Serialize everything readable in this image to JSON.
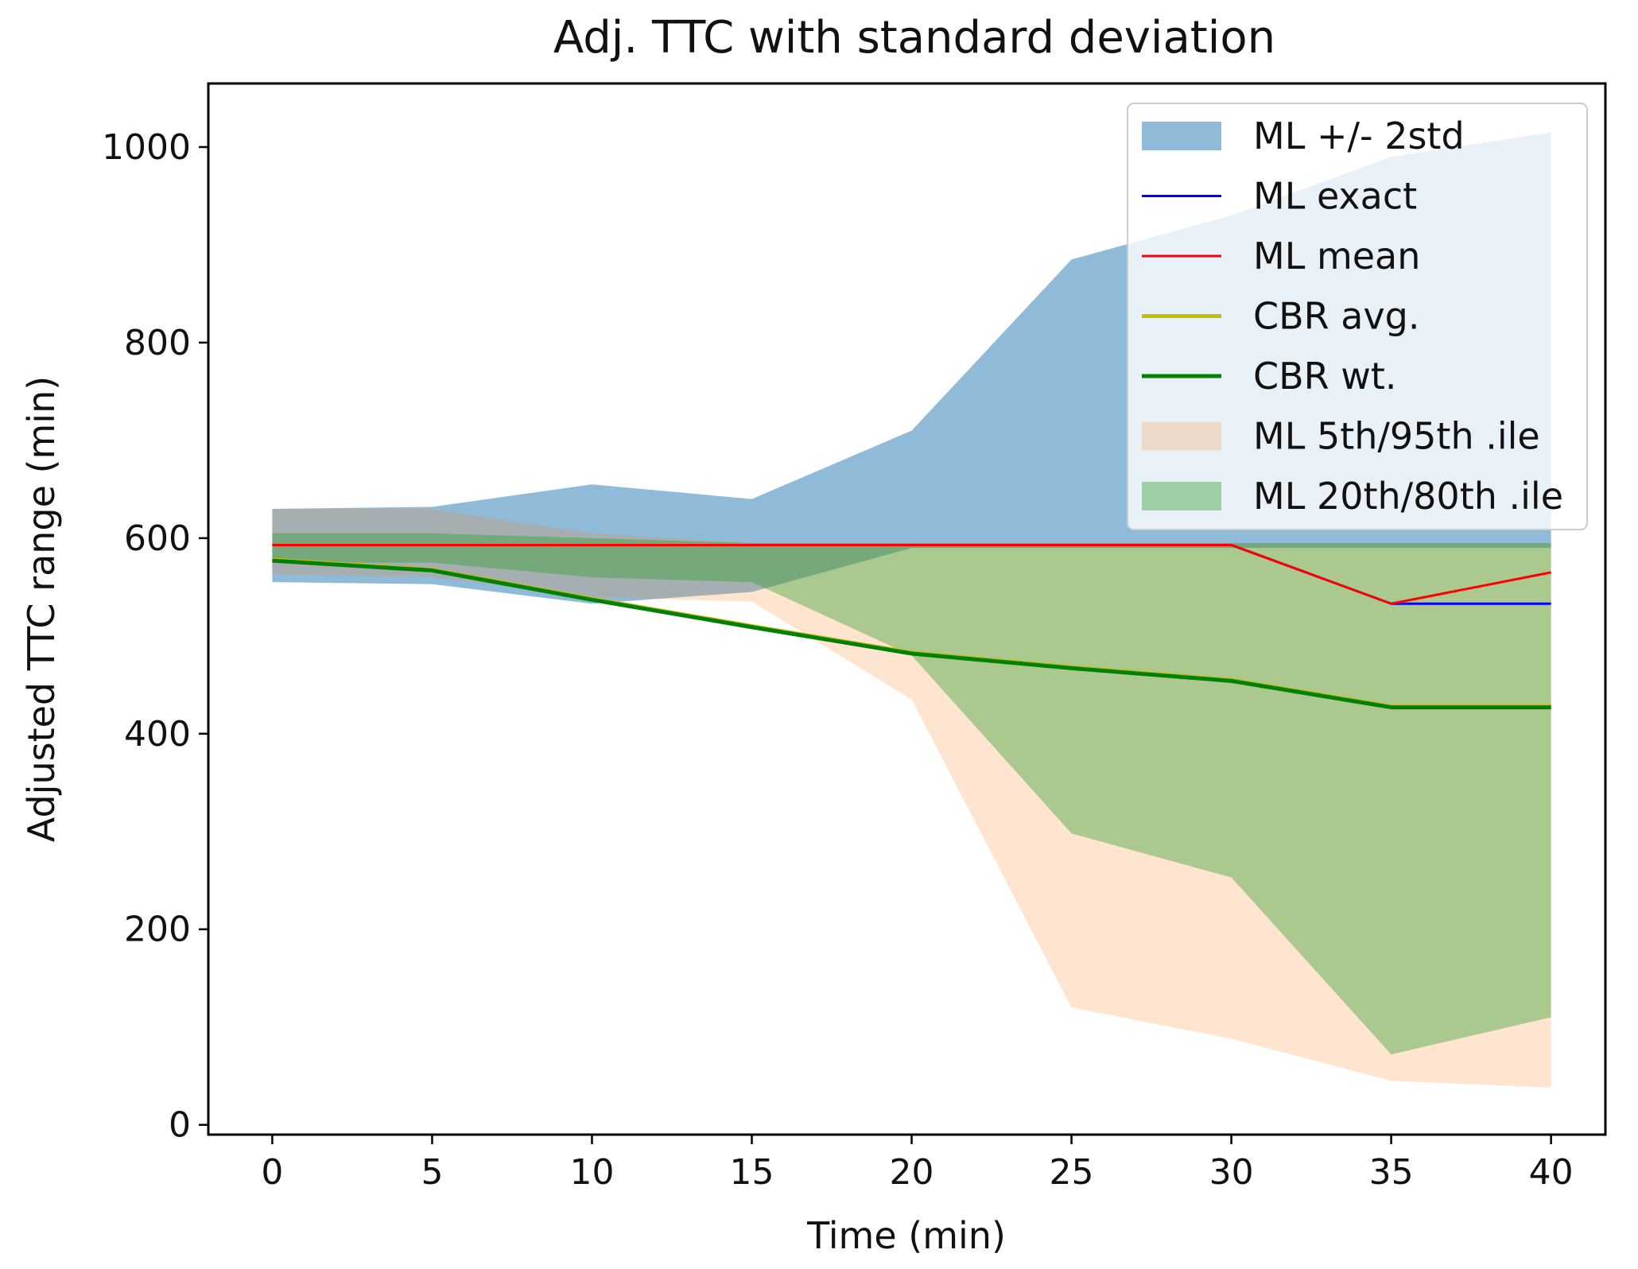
{
  "chart_data": {
    "type": "area",
    "title": "Adj. TTC with standard deviation",
    "xlabel": "Time (min)",
    "ylabel": "Adjusted TTC range (min)",
    "x": [
      0,
      5,
      10,
      15,
      20,
      25,
      30,
      35,
      40
    ],
    "xlim": [
      -2,
      41.7
    ],
    "ylim": [
      -10,
      1065
    ],
    "xticks": [
      0,
      5,
      10,
      15,
      20,
      25,
      30,
      35,
      40
    ],
    "yticks": [
      0,
      200,
      400,
      600,
      800,
      1000
    ],
    "grid": false,
    "legend_position": "top-right",
    "bands": [
      {
        "name": "ML +/- 2std",
        "color": "#1f77b4",
        "opacity": 0.5,
        "lower": [
          555,
          553,
          533,
          545,
          590,
          590,
          590,
          590,
          590
        ],
        "upper": [
          630,
          632,
          655,
          640,
          710,
          885,
          930,
          990,
          1015
        ]
      },
      {
        "name": "ML 5th/95th .ile",
        "color": "#ff7f0e",
        "opacity": 0.2,
        "lower": [
          563,
          560,
          540,
          535,
          435,
          120,
          88,
          45,
          38
        ],
        "upper": [
          630,
          630,
          605,
          595,
          595,
          595,
          595,
          595,
          595
        ]
      },
      {
        "name": "ML 20th/80th .ile",
        "color": "#2ca02c",
        "opacity": 0.4,
        "lower": [
          575,
          575,
          560,
          555,
          480,
          298,
          253,
          72,
          110
        ],
        "upper": [
          605,
          605,
          600,
          595,
          595,
          595,
          595,
          595,
          595
        ]
      }
    ],
    "lines": [
      {
        "name": "ML exact",
        "color": "#0000ff",
        "width": 3,
        "values": [
          593,
          593,
          593,
          593,
          593,
          593,
          593,
          533,
          533
        ]
      },
      {
        "name": "ML mean",
        "color": "#ff0000",
        "width": 3,
        "values": [
          593,
          593,
          593,
          593,
          593,
          593,
          593,
          533,
          565
        ]
      },
      {
        "name": "CBR avg.",
        "color": "#bfbf00",
        "width": 5,
        "values": [
          578,
          568,
          538,
          510,
          483,
          468,
          455,
          428,
          428
        ]
      },
      {
        "name": "CBR wt.",
        "color": "#008000",
        "width": 5,
        "values": [
          577,
          567,
          537,
          509,
          482,
          467,
          454,
          427,
          427
        ]
      }
    ],
    "legend": [
      {
        "name": "ML +/- 2std",
        "kind": "patch",
        "color": "#1f77b4",
        "opacity": 0.5
      },
      {
        "name": "ML exact",
        "kind": "line",
        "color": "#0000ff",
        "width": 3
      },
      {
        "name": "ML mean",
        "kind": "line",
        "color": "#ff0000",
        "width": 3
      },
      {
        "name": "CBR avg.",
        "kind": "line",
        "color": "#bfbf00",
        "width": 5
      },
      {
        "name": "CBR wt.",
        "kind": "line",
        "color": "#008000",
        "width": 5
      },
      {
        "name": "ML 5th/95th .ile",
        "kind": "patch",
        "color": "#ff7f0e",
        "opacity": 0.2
      },
      {
        "name": "ML 20th/80th .ile",
        "kind": "patch",
        "color": "#2ca02c",
        "opacity": 0.4
      }
    ]
  }
}
